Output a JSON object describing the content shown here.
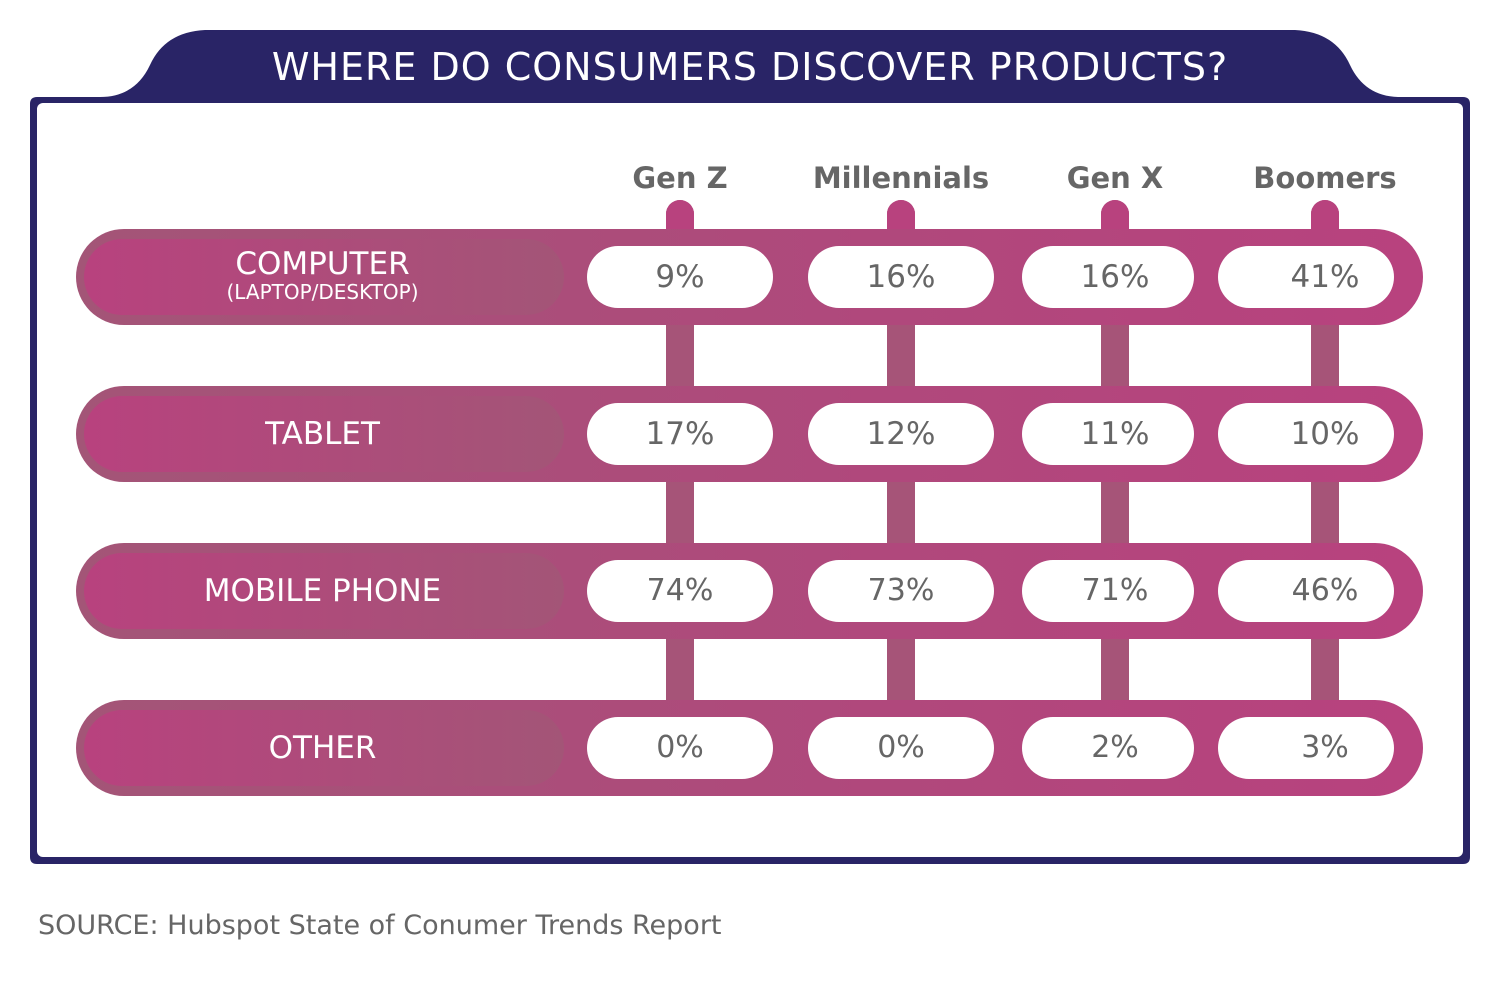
{
  "colors": {
    "navy": "#292466",
    "magenta": "#B8427E",
    "mauve": "#A65478",
    "white": "#FFFFFF",
    "text_gray": "#666666"
  },
  "chart_data": {
    "type": "table",
    "title": "WHERE DO CONSUMERS DISCOVER PRODUCTS?",
    "columns": [
      "Gen Z",
      "Millennials",
      "Gen X",
      "Boomers"
    ],
    "rows": [
      {
        "label": "COMPUTER",
        "sublabel": "(LAPTOP/DESKTOP)",
        "values": [
          9,
          16,
          16,
          41
        ],
        "display": [
          "9%",
          "16%",
          "16%",
          "41%"
        ]
      },
      {
        "label": "TABLET",
        "sublabel": "",
        "values": [
          17,
          12,
          11,
          10
        ],
        "display": [
          "17%",
          "12%",
          "11%",
          "10%"
        ]
      },
      {
        "label": "MOBILE PHONE",
        "sublabel": "",
        "values": [
          74,
          73,
          71,
          46
        ],
        "display": [
          "74%",
          "73%",
          "71%",
          "46%"
        ]
      },
      {
        "label": "OTHER",
        "sublabel": "",
        "values": [
          0,
          0,
          2,
          3
        ],
        "display": [
          "0%",
          "0%",
          "2%",
          "3%"
        ]
      }
    ],
    "unit": "%"
  },
  "source": "SOURCE: Hubspot State of Conumer Trends Report"
}
